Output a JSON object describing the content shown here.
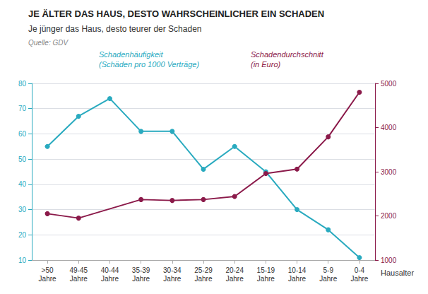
{
  "chart_data": {
    "type": "line",
    "title": "JE ÄLTER DAS HAUS, DESTO WAHRSCHEINLICHER EIN SCHADEN",
    "subtitle": "Je jünger das Haus, desto teurer der Schaden",
    "source": "Quelle: GDV",
    "xlabel": "Hausalter",
    "categories": [
      ">50\nJahre",
      "49-45\nJahre",
      "40-44\nJahre",
      "35-39\nJahre",
      "30-34\nJahre",
      "25-29\nJahre",
      "20-24\nJahre",
      "15-19\nJahre",
      "10-14\nJahre",
      "5-9\nJahre",
      "0-4\nJahre"
    ],
    "series": [
      {
        "name": "Schadenhäufigkeit\n(Schäden pro 1000 Verträge)",
        "color": "#29AABF",
        "marker": "circle",
        "values": [
          55,
          67,
          74,
          61,
          61,
          46,
          55,
          45,
          30,
          22,
          11
        ]
      },
      {
        "name": "Schadendurchschnitt\n(in Euro)",
        "color": "#8B1A4A",
        "marker": "circle",
        "axis": "y2",
        "values": [
          2050,
          1950,
          null,
          2370,
          2350,
          2370,
          2440,
          2960,
          3060,
          3790,
          4800
        ]
      }
    ],
    "ylim": [
      10,
      80
    ],
    "yticks": [
      10,
      20,
      30,
      40,
      50,
      60,
      70,
      80
    ],
    "y2lim": [
      1000,
      5000
    ],
    "y2ticks": [
      1000,
      2000,
      3000,
      4000,
      5000
    ],
    "grid": true
  }
}
